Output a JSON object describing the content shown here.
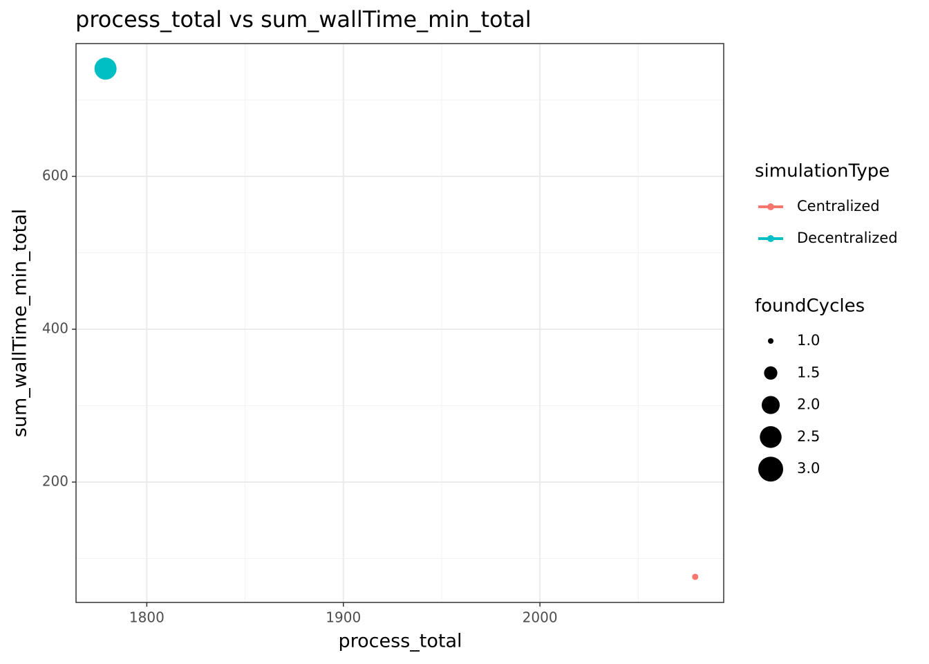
{
  "chart_data": {
    "type": "scatter",
    "title": "process_total  vs  sum_wallTime_min_total",
    "x_label": "process_total",
    "y_label": "sum_wallTime_min_total",
    "xlim": [
      1764,
      2093.5
    ],
    "xticks": [
      1800,
      1900,
      2000
    ],
    "ylim": [
      42.5,
      773.8
    ],
    "yticks": [
      200,
      400,
      600
    ],
    "grid": true,
    "color_legend_title": "simulationType",
    "size_legend_title": "foundCycles",
    "sizelim": [
      1,
      3
    ],
    "size_ticks": [
      {
        "value": 1,
        "label": "1.0"
      },
      1.5,
      {
        "value": 2,
        "label": "2.0"
      },
      2.5,
      {
        "value": 3,
        "label": "3.0"
      }
    ],
    "series": [
      {
        "name": "Centralized",
        "color": "#F8766D",
        "x": [
          2079
        ],
        "values": [
          76
        ],
        "sizes": [
          1
        ]
      },
      {
        "name": "Decentralized",
        "color": "#00BFC4",
        "x": [
          1779
        ],
        "values": [
          741
        ],
        "sizes": [
          3
        ]
      }
    ]
  }
}
